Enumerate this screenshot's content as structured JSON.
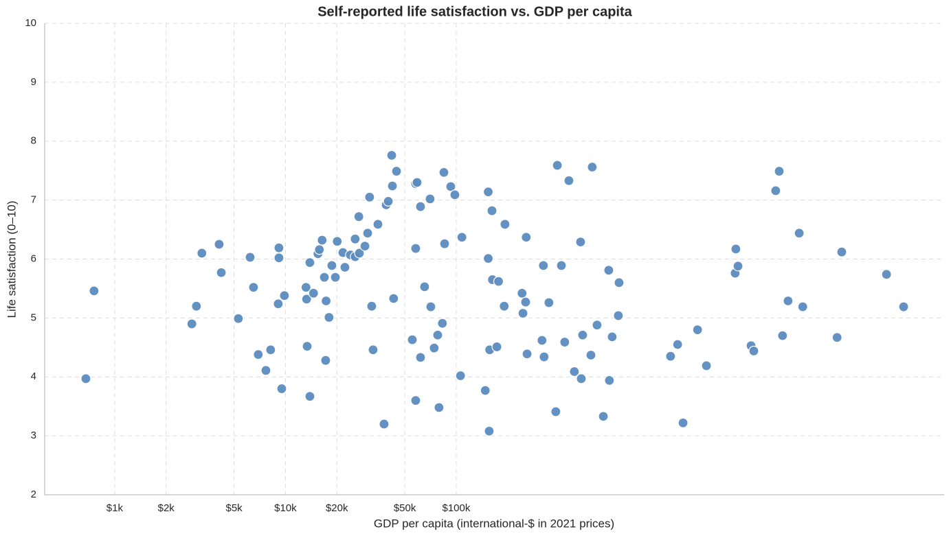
{
  "chart_data": {
    "type": "scatter",
    "title": "Self-reported life satisfaction vs. GDP per capita",
    "x_label": "GDP per capita (international-$ in 2021 prices)",
    "y_label": "Life satisfaction (0–10)",
    "x_scale": "log",
    "grid": true,
    "color": "#5b8cbf",
    "xlim": [
      389,
      72000000
    ],
    "xticks": [
      {
        "value": 1000,
        "label": "$1k"
      },
      {
        "value": 2000,
        "label": "$2k"
      },
      {
        "value": 5000,
        "label": "$5k"
      },
      {
        "value": 10000,
        "label": "$10k"
      },
      {
        "value": 20000,
        "label": "$20k"
      },
      {
        "value": 50000,
        "label": "$50k"
      },
      {
        "value": 100000,
        "label": "$100k"
      }
    ],
    "ylim": [
      2,
      10
    ],
    "yticks": [
      2,
      3,
      4,
      5,
      6,
      7,
      8,
      9,
      10
    ],
    "x": [
      678,
      757,
      2830,
      3010,
      3240,
      4090,
      4210,
      5300,
      6210,
      6500,
      6930,
      7680,
      8190,
      9070,
      9160,
      9160,
      9510,
      9860,
      13200,
      13300,
      13400,
      13900,
      13900,
      14600,
      15500,
      15800,
      16400,
      16900,
      17300,
      17200,
      18000,
      18700,
      19600,
      20100,
      21700,
      22300,
      24000,
      25600,
      25600,
      26900,
      27100,
      29200,
      30300,
      31100,
      32000,
      32600,
      34800,
      37800,
      38900,
      40000,
      41900,
      42300,
      43000,
      44700,
      55300,
      57900,
      57900,
      57900,
      59000,
      61800,
      61800,
      65300,
      70300,
      71000,
      74300,
      77900,
      79300,
      83000,
      84700,
      85500,
      92900,
      98200,
      106000,
      108000,
      148000,
      154000,
      154000,
      156000,
      157000,
      162000,
      163000,
      173000,
      177000,
      191000,
      193000,
      243000,
      246000,
      255000,
      257000,
      260000,
      318000,
      324000,
      327000,
      349000,
      383000,
      391000,
      413000,
      432000,
      457000,
      492000,
      535000,
      540000,
      550000,
      615000,
      626000,
      668000,
      727000,
      782000,
      789000,
      819000,
      890000,
      899000,
      1800000,
      1980000,
      2130000,
      2590000,
      2920000,
      4300000,
      4340000,
      4470000,
      5330000,
      5530000,
      7430000,
      7790000,
      8150000,
      8780000,
      10200000,
      10700000,
      17000000,
      18100000,
      33100000,
      41700000
    ],
    "values": [
      3.97,
      5.46,
      4.9,
      5.2,
      6.1,
      6.25,
      5.77,
      4.99,
      6.03,
      5.52,
      4.38,
      4.11,
      4.46,
      5.24,
      6.19,
      6.02,
      3.8,
      5.38,
      5.52,
      5.32,
      4.52,
      5.94,
      3.67,
      5.42,
      6.09,
      6.16,
      6.32,
      5.69,
      5.29,
      4.28,
      5.01,
      5.89,
      5.69,
      6.3,
      6.11,
      5.86,
      6.07,
      6.04,
      6.34,
      6.72,
      6.1,
      6.22,
      6.44,
      7.05,
      5.2,
      4.46,
      6.59,
      3.2,
      6.92,
      6.98,
      7.76,
      7.24,
      5.33,
      7.49,
      4.63,
      3.6,
      6.18,
      7.28,
      7.3,
      6.89,
      4.33,
      5.53,
      7.02,
      5.19,
      4.49,
      4.71,
      3.48,
      4.91,
      7.47,
      6.26,
      7.23,
      7.09,
      4.02,
      6.37,
      3.77,
      7.14,
      6.01,
      3.08,
      4.46,
      6.82,
      5.65,
      4.51,
      5.62,
      5.2,
      6.59,
      5.42,
      5.08,
      5.27,
      6.37,
      4.39,
      4.62,
      5.89,
      4.34,
      5.26,
      3.41,
      7.59,
      5.89,
      4.59,
      7.33,
      4.09,
      6.29,
      3.97,
      4.71,
      4.37,
      7.56,
      4.88,
      3.33,
      5.81,
      3.94,
      4.68,
      5.04,
      5.6,
      4.35,
      4.55,
      3.22,
      4.8,
      4.19,
      5.76,
      6.17,
      5.88,
      4.53,
      4.44,
      7.16,
      7.49,
      4.7,
      5.29,
      6.44,
      5.19,
      4.67,
      6.12,
      5.74,
      5.19
    ]
  }
}
